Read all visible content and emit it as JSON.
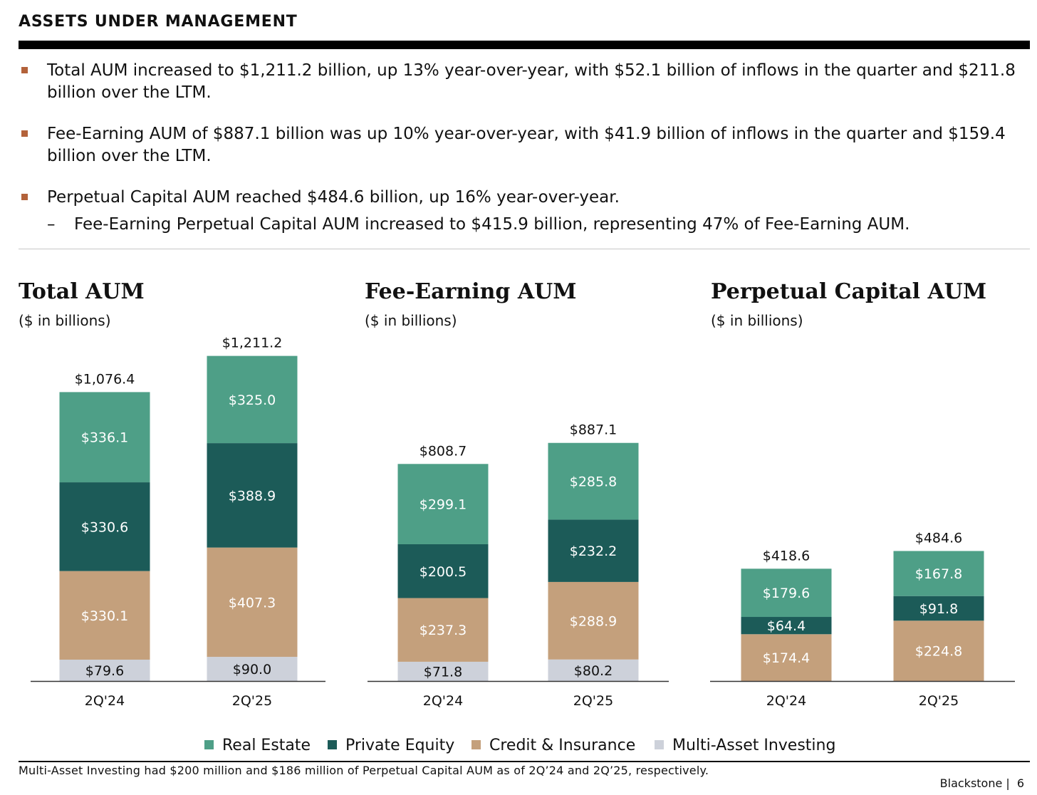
{
  "header": {
    "title": "ASSETS UNDER MANAGEMENT"
  },
  "bullets": [
    "Total AUM increased to $1,211.2 billion, up 13% year-over-year, with $52.1 billion of inflows in the quarter and $211.8 billion over the LTM.",
    "Fee-Earning AUM of $887.1 billion was up 10% year-over-year, with $41.9 billion of inflows in the quarter and $159.4 billion over the LTM.",
    "Perpetual Capital AUM reached $484.6 billion, up 16% year-over-year."
  ],
  "sub_bullet": "Fee-Earning Perpetual Capital AUM increased to $415.9 billion, representing 47% of Fee-Earning AUM.",
  "sub_bullet_dash": "–",
  "colors": {
    "real_estate": "#4e9f87",
    "private_equity": "#1c5b58",
    "credit_insurance": "#c4a07c",
    "multi_asset": "#cdd1da",
    "bullet_marker": "#b3623a"
  },
  "chart_data": [
    {
      "type": "bar",
      "stacked": true,
      "title": "Total AUM",
      "subtitle": "($ in billions)",
      "categories": [
        "2Q'24",
        "2Q'25"
      ],
      "totals": [
        1076.4,
        1211.2
      ],
      "total_labels": [
        "$1,076.4",
        "$1,211.2"
      ],
      "series": [
        {
          "name": "Multi-Asset Investing",
          "values": [
            79.6,
            90.0
          ],
          "labels": [
            "$79.6",
            "$90.0"
          ]
        },
        {
          "name": "Credit & Insurance",
          "values": [
            330.1,
            407.3
          ],
          "labels": [
            "$330.1",
            "$407.3"
          ]
        },
        {
          "name": "Private Equity",
          "values": [
            330.6,
            388.9
          ],
          "labels": [
            "$330.6",
            "$388.9"
          ]
        },
        {
          "name": "Real Estate",
          "values": [
            336.1,
            325.0
          ],
          "labels": [
            "$336.1",
            "$325.0"
          ]
        }
      ]
    },
    {
      "type": "bar",
      "stacked": true,
      "title": "Fee-Earning AUM",
      "subtitle": "($ in billions)",
      "categories": [
        "2Q'24",
        "2Q'25"
      ],
      "totals": [
        808.7,
        887.1
      ],
      "total_labels": [
        "$808.7",
        "$887.1"
      ],
      "series": [
        {
          "name": "Multi-Asset Investing",
          "values": [
            71.8,
            80.2
          ],
          "labels": [
            "$71.8",
            "$80.2"
          ]
        },
        {
          "name": "Credit & Insurance",
          "values": [
            237.3,
            288.9
          ],
          "labels": [
            "$237.3",
            "$288.9"
          ]
        },
        {
          "name": "Private Equity",
          "values": [
            200.5,
            232.2
          ],
          "labels": [
            "$200.5",
            "$232.2"
          ]
        },
        {
          "name": "Real Estate",
          "values": [
            299.1,
            285.8
          ],
          "labels": [
            "$299.1",
            "$285.8"
          ]
        }
      ]
    },
    {
      "type": "bar",
      "stacked": true,
      "title": "Perpetual Capital AUM",
      "subtitle": "($ in billions)",
      "categories": [
        "2Q'24",
        "2Q'25"
      ],
      "totals": [
        418.6,
        484.6
      ],
      "total_labels": [
        "$418.6",
        "$484.6"
      ],
      "series": [
        {
          "name": "Credit & Insurance",
          "values": [
            174.4,
            224.8
          ],
          "labels": [
            "$174.4",
            "$224.8"
          ]
        },
        {
          "name": "Private Equity",
          "values": [
            64.4,
            91.8
          ],
          "labels": [
            "$64.4",
            "$91.8"
          ]
        },
        {
          "name": "Real Estate",
          "values": [
            179.6,
            167.8
          ],
          "labels": [
            "$179.6",
            "$167.8"
          ]
        }
      ]
    }
  ],
  "legend": [
    {
      "label": "Real Estate",
      "color": "#4e9f87"
    },
    {
      "label": "Private Equity",
      "color": "#1c5b58"
    },
    {
      "label": "Credit & Insurance",
      "color": "#c4a07c"
    },
    {
      "label": "Multi-Asset Investing",
      "color": "#cdd1da"
    }
  ],
  "footnote": "Multi-Asset Investing had $200 million and $186 million of Perpetual Capital AUM as of 2Q’24 and 2Q’25, respectively.",
  "footer": {
    "brand": "Blackstone |",
    "page": "6"
  }
}
